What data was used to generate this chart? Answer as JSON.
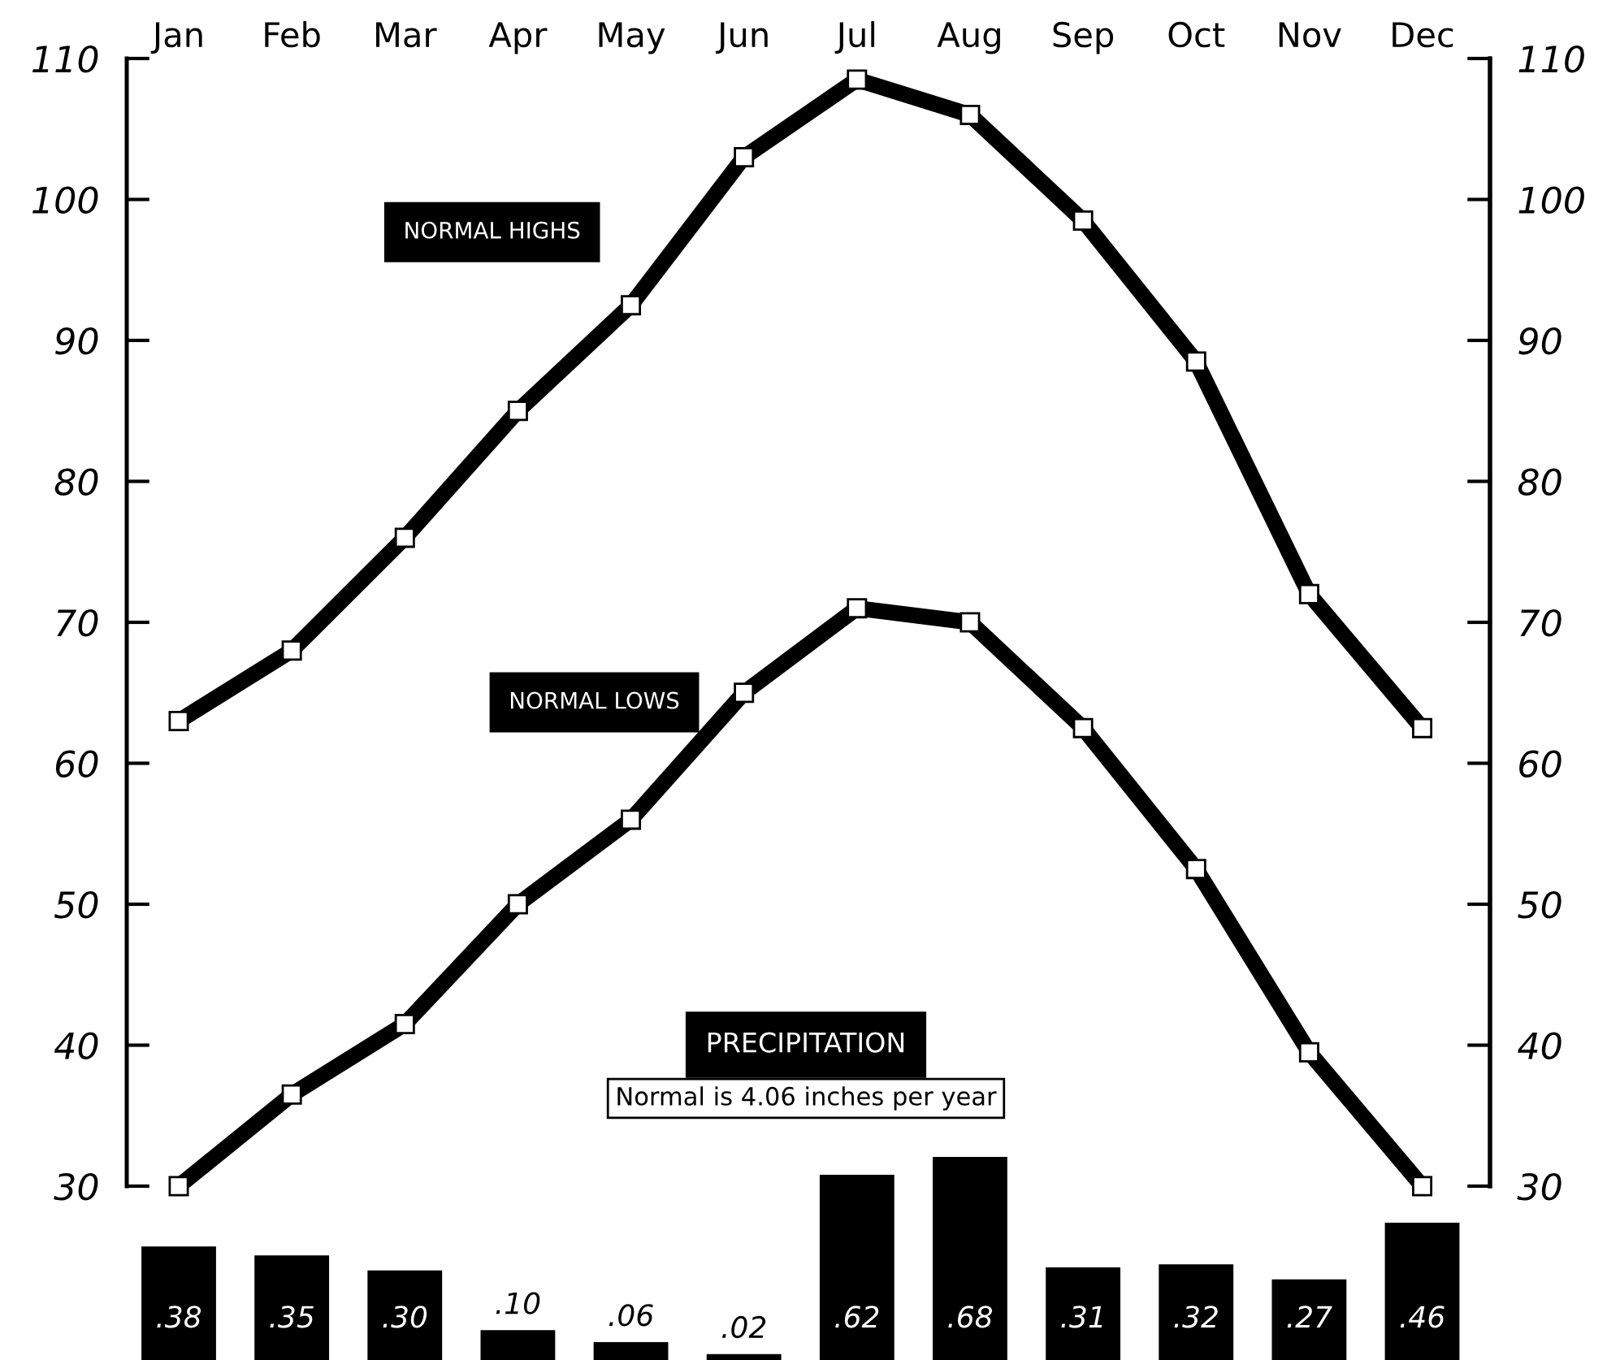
{
  "chart_data": [
    {
      "type": "line",
      "categories": [
        "Jan",
        "Feb",
        "Mar",
        "Apr",
        "May",
        "Jun",
        "Jul",
        "Aug",
        "Sep",
        "Oct",
        "Nov",
        "Dec"
      ],
      "series": [
        {
          "name": "NORMAL HIGHS",
          "color": "#000000",
          "values": [
            63,
            68,
            76,
            85,
            92.5,
            103,
            108.5,
            106,
            98.5,
            88.5,
            72,
            62.5
          ]
        },
        {
          "name": "NORMAL LOWS",
          "color": "#000000",
          "values": [
            30,
            36.5,
            41.5,
            50,
            56,
            65,
            71,
            70,
            62.5,
            52.5,
            39.5,
            30
          ]
        }
      ],
      "ylim": [
        30,
        110
      ],
      "yticks": [
        30,
        40,
        50,
        60,
        70,
        80,
        90,
        100,
        110
      ],
      "y2lim": [
        30,
        110
      ],
      "y2ticks": [
        30,
        40,
        50,
        60,
        70,
        80,
        90,
        100,
        110
      ],
      "marker": "square",
      "line_style": "solid",
      "grid": false,
      "legend": false
    },
    {
      "type": "bar",
      "title": "PRECIPITATION",
      "subtitle": "Normal is 4.06 inches per year",
      "categories": [
        null,
        null,
        null,
        null,
        null,
        null,
        null,
        null,
        null,
        null,
        null,
        null
      ],
      "values": [
        0.38,
        0.35,
        0.3,
        0.1,
        0.06,
        0.02,
        0.62,
        0.68,
        0.31,
        0.32,
        0.27,
        0.46
      ],
      "value_labels": [
        ".38",
        ".35",
        ".30",
        ".10",
        ".06",
        ".02",
        ".62",
        ".68",
        ".31",
        ".32",
        ".27",
        ".46"
      ],
      "color": "#000000",
      "grid": false,
      "legend": false
    }
  ]
}
